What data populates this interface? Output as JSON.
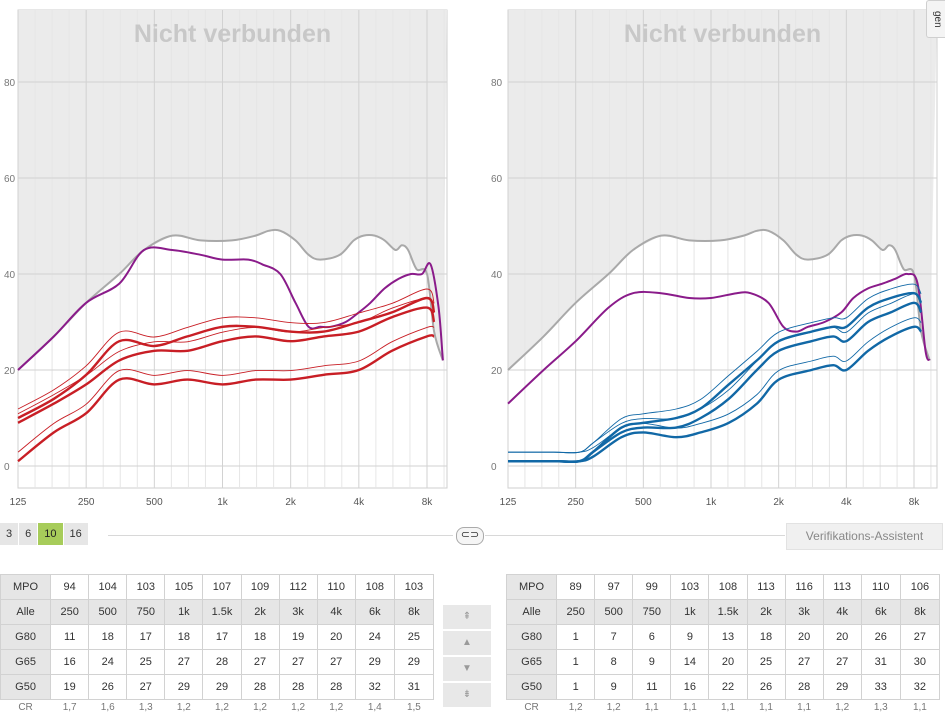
{
  "side_tab_label": "gen",
  "frequency_ticks": [
    "125",
    "250",
    "500",
    "1k",
    "2k",
    "4k",
    "8k"
  ],
  "level_ticks": [
    "0",
    "20",
    "40",
    "60",
    "80"
  ],
  "channel_buttons": [
    {
      "label": "3",
      "active": false
    },
    {
      "label": "6",
      "active": false
    },
    {
      "label": "10",
      "active": true
    },
    {
      "label": "16",
      "active": false
    }
  ],
  "link_icon_name": "link-icon",
  "verification_button_label": "Verifikations-Assistent",
  "level_buttons": [
    {
      "icon": "double-up-icon",
      "glyph": "⇞"
    },
    {
      "icon": "up-icon",
      "glyph": "▲"
    },
    {
      "icon": "down-icon",
      "glyph": "▼"
    },
    {
      "icon": "double-down-icon",
      "glyph": "⇟"
    }
  ],
  "left": {
    "status_text": "Nicht verbunden",
    "table": {
      "mpo_label": "MPO",
      "mpo": [
        "94",
        "104",
        "103",
        "105",
        "107",
        "109",
        "112",
        "110",
        "108",
        "103"
      ],
      "alle_label": "Alle",
      "bands": [
        "250",
        "500",
        "750",
        "1k",
        "1.5k",
        "2k",
        "3k",
        "4k",
        "6k",
        "8k"
      ],
      "rows": [
        {
          "label": "G80",
          "values": [
            "11",
            "18",
            "17",
            "18",
            "17",
            "18",
            "19",
            "20",
            "24",
            "25"
          ]
        },
        {
          "label": "G65",
          "values": [
            "16",
            "24",
            "25",
            "27",
            "28",
            "27",
            "27",
            "27",
            "29",
            "29"
          ]
        },
        {
          "label": "G50",
          "values": [
            "19",
            "26",
            "27",
            "29",
            "29",
            "28",
            "28",
            "28",
            "32",
            "31"
          ]
        }
      ],
      "cr_label": "CR",
      "cr": [
        "1,7",
        "1,6",
        "1,3",
        "1,2",
        "1,2",
        "1,2",
        "1,2",
        "1,2",
        "1,4",
        "1,5"
      ]
    }
  },
  "right": {
    "status_text": "Nicht verbunden",
    "table": {
      "mpo_label": "MPO",
      "mpo": [
        "89",
        "97",
        "99",
        "103",
        "108",
        "113",
        "116",
        "113",
        "110",
        "106"
      ],
      "alle_label": "Alle",
      "bands": [
        "250",
        "500",
        "750",
        "1k",
        "1.5k",
        "2k",
        "3k",
        "4k",
        "6k",
        "8k"
      ],
      "rows": [
        {
          "label": "G80",
          "values": [
            "1",
            "7",
            "6",
            "9",
            "13",
            "18",
            "20",
            "20",
            "26",
            "27"
          ]
        },
        {
          "label": "G65",
          "values": [
            "1",
            "8",
            "9",
            "14",
            "20",
            "25",
            "27",
            "27",
            "31",
            "30"
          ]
        },
        {
          "label": "G50",
          "values": [
            "1",
            "9",
            "11",
            "16",
            "22",
            "26",
            "28",
            "29",
            "33",
            "32"
          ]
        }
      ],
      "cr_label": "CR",
      "cr": [
        "1,2",
        "1,2",
        "1,1",
        "1,1",
        "1,1",
        "1,1",
        "1,1",
        "1,2",
        "1,3",
        "1,1"
      ]
    }
  },
  "colors": {
    "grid_bg": "#ebebeb",
    "gridline": "#d2d2d2",
    "uncomfortable_curve": "#a9a9a9",
    "mpo_curve": "#8a1b8a",
    "left_gain": "#c81e25",
    "right_gain": "#1168a6",
    "active_channel": "#a7cc5a"
  },
  "chart_data": [
    {
      "type": "line",
      "title": "Nicht verbunden",
      "ear": "left",
      "x_ticks": [
        "125",
        "250",
        "500",
        "1k",
        "2k",
        "4k",
        "8k"
      ],
      "ylim": [
        -4,
        96
      ],
      "y_ticks": [
        0,
        20,
        40,
        60,
        80
      ],
      "xscale": "log",
      "series": [
        {
          "role": "uncomfortable",
          "x": [
            125,
            180,
            250,
            350,
            450,
            600,
            800,
            1100,
            1400,
            1600,
            1800,
            2100,
            2400,
            2700,
            3300,
            3800,
            4200,
            4700,
            5200,
            5800,
            6200,
            6600,
            7200,
            8000,
            8600,
            9400
          ],
          "y": [
            20,
            27,
            34,
            40,
            45,
            48,
            47,
            47,
            48,
            49,
            49,
            47,
            44,
            43,
            44,
            47,
            48,
            48,
            47,
            45,
            46,
            45,
            41,
            40,
            28,
            22
          ]
        },
        {
          "role": "mpo",
          "x": [
            125,
            180,
            250,
            350,
            450,
            600,
            800,
            1000,
            1300,
            1500,
            1800,
            2100,
            2400,
            2700,
            3000,
            3500,
            4000,
            4500,
            5200,
            6000,
            6800,
            7600,
            8300,
            9000,
            9400
          ],
          "y": [
            20,
            27,
            34,
            38,
            45,
            45,
            44,
            43,
            43,
            42,
            40,
            34,
            29,
            29,
            29,
            30,
            32,
            34,
            37,
            39,
            40,
            40,
            42,
            33,
            22
          ],
          "smooth": true
        },
        {
          "role": "gain-G50",
          "x": [
            125,
            180,
            250,
            350,
            500,
            700,
            1000,
            1400,
            2000,
            2800,
            4000,
            5600,
            8000,
            8600
          ],
          "y": [
            10,
            14,
            19,
            26,
            25,
            27,
            29,
            29,
            28,
            28,
            30,
            32,
            35,
            32
          ],
          "smooth": true
        },
        {
          "role": "gain-G65",
          "x": [
            125,
            180,
            250,
            350,
            500,
            700,
            1000,
            1400,
            2000,
            2800,
            4000,
            5600,
            8000,
            8600
          ],
          "y": [
            9,
            13,
            17,
            22,
            24,
            24,
            26,
            27,
            26,
            27,
            28,
            31,
            33,
            30
          ],
          "smooth": true
        },
        {
          "role": "gain-G80",
          "x": [
            125,
            180,
            250,
            350,
            500,
            700,
            1000,
            1400,
            2000,
            2800,
            4000,
            5600,
            8000,
            8600
          ],
          "y": [
            1,
            7,
            11,
            18,
            17,
            18,
            17,
            18,
            18,
            19,
            20,
            24,
            27,
            27
          ],
          "smooth": true
        }
      ]
    },
    {
      "type": "line",
      "title": "Nicht verbunden",
      "ear": "right",
      "x_ticks": [
        "125",
        "250",
        "500",
        "1k",
        "2k",
        "4k",
        "8k"
      ],
      "ylim": [
        -4,
        96
      ],
      "y_ticks": [
        0,
        20,
        40,
        60,
        80
      ],
      "xscale": "log",
      "series": [
        {
          "role": "uncomfortable",
          "x": [
            125,
            180,
            250,
            350,
            450,
            600,
            800,
            1100,
            1400,
            1600,
            1800,
            2100,
            2400,
            2700,
            3300,
            3800,
            4200,
            4700,
            5200,
            5800,
            6200,
            6600,
            7200,
            8000,
            8600,
            9400
          ],
          "y": [
            20,
            27,
            34,
            40,
            45,
            48,
            47,
            47,
            48,
            49,
            49,
            47,
            44,
            43,
            44,
            47,
            48,
            48,
            47,
            45,
            46,
            45,
            41,
            40,
            28,
            22
          ]
        },
        {
          "role": "mpo",
          "x": [
            125,
            180,
            250,
            350,
            450,
            600,
            800,
            1000,
            1300,
            1500,
            1800,
            2100,
            2400,
            2700,
            3200,
            3800,
            4300,
            5000,
            5800,
            6600,
            7500,
            8300,
            9000,
            9400
          ],
          "y": [
            13,
            20,
            26,
            33,
            36,
            36,
            35,
            35,
            36,
            36,
            34,
            29,
            28,
            29,
            30,
            32,
            35,
            37,
            38,
            39,
            40,
            38,
            24,
            22
          ],
          "smooth": true
        },
        {
          "role": "gain-G50",
          "x": [
            125,
            200,
            260,
            300,
            400,
            500,
            700,
            900,
            1200,
            1600,
            2000,
            2800,
            3500,
            4000,
            5000,
            6300,
            8000,
            8600
          ],
          "y": [
            1,
            1,
            1,
            3,
            8,
            9,
            10,
            12,
            17,
            22,
            26,
            28,
            29,
            29,
            33,
            35,
            36,
            34
          ],
          "smooth": true
        },
        {
          "role": "gain-G65",
          "x": [
            125,
            200,
            260,
            300,
            400,
            500,
            700,
            900,
            1200,
            1600,
            2000,
            2800,
            3500,
            4000,
            5000,
            6300,
            8000,
            8600
          ],
          "y": [
            1,
            1,
            1,
            3,
            7,
            8,
            8,
            10,
            14,
            20,
            24,
            26,
            27,
            26,
            30,
            32,
            34,
            32
          ],
          "smooth": true
        },
        {
          "role": "gain-G80",
          "x": [
            125,
            200,
            260,
            300,
            400,
            500,
            700,
            900,
            1200,
            1600,
            2000,
            2800,
            3500,
            4000,
            5000,
            6300,
            8000,
            8600
          ],
          "y": [
            1,
            1,
            1,
            2,
            6,
            7,
            6,
            7,
            9,
            13,
            18,
            20,
            21,
            20,
            24,
            27,
            29,
            28
          ],
          "smooth": true
        }
      ]
    }
  ]
}
